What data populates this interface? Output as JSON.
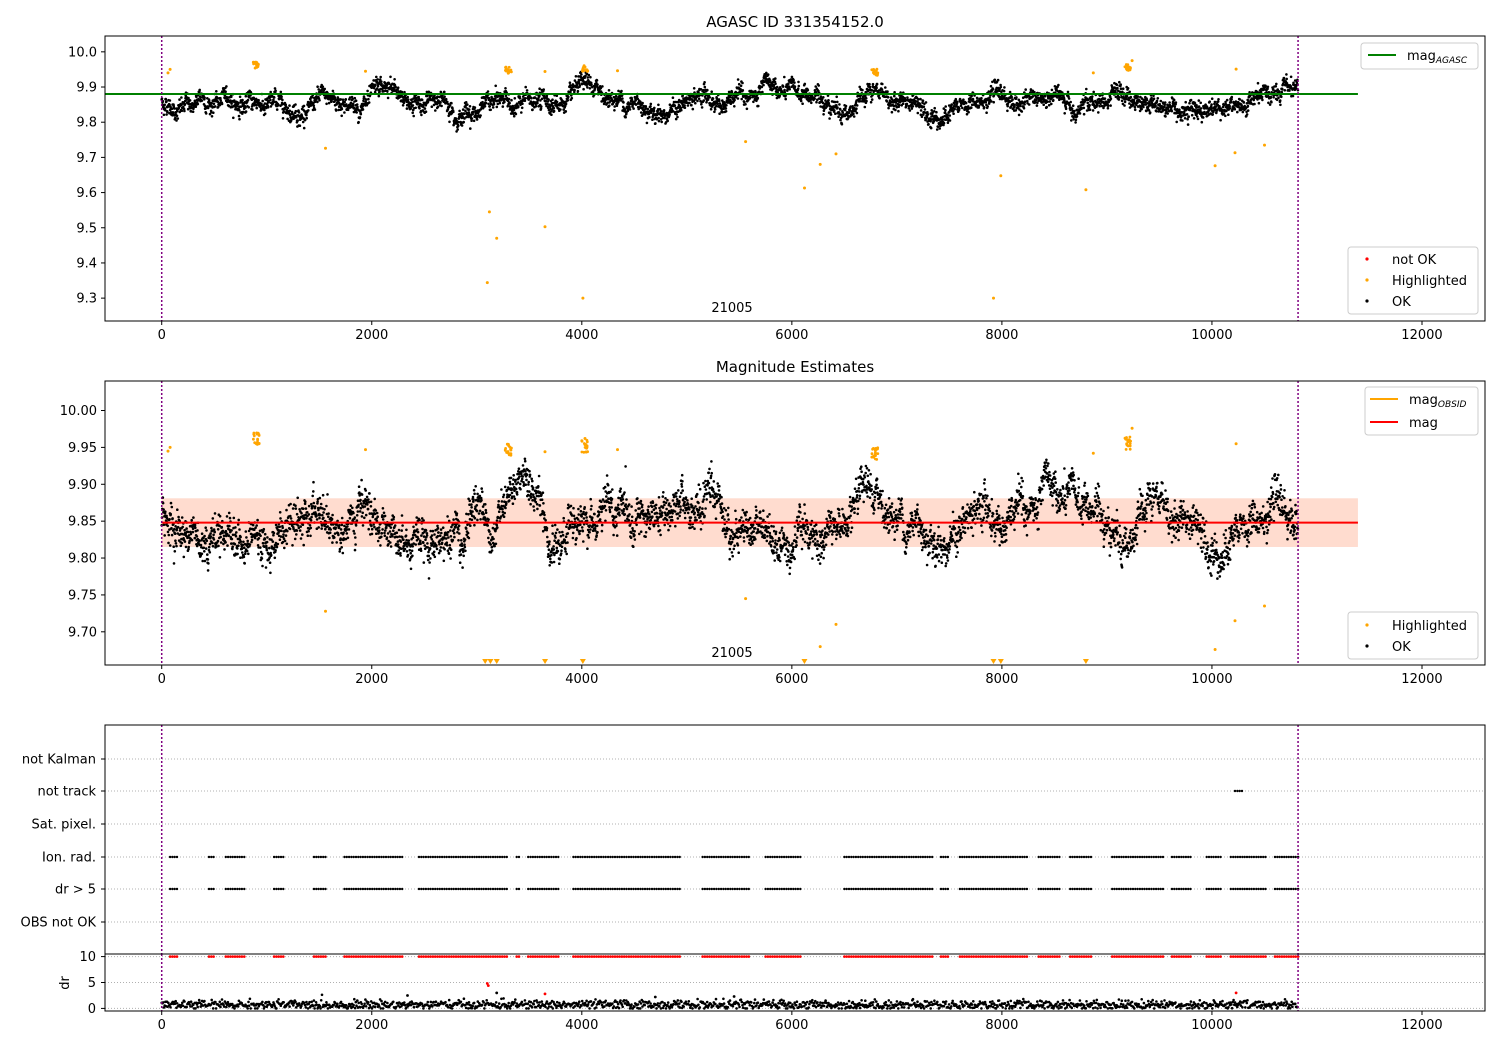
{
  "chart_data": [
    {
      "type": "scatter",
      "title": "AGASC ID 331354152.0",
      "xlim": [
        -540,
        12600
      ],
      "ylim": [
        9.235,
        10.045
      ],
      "xticks": [
        0,
        2000,
        4000,
        6000,
        8000,
        10000,
        12000
      ],
      "yticks": [
        9.3,
        9.4,
        9.5,
        9.6,
        9.7,
        9.8,
        9.9,
        10.0
      ],
      "ytick_labels": [
        "9.3",
        "9.4",
        "9.5",
        "9.6",
        "9.7",
        "9.8",
        "9.9",
        "10.0"
      ],
      "vlines": [
        0,
        10820
      ],
      "hline": {
        "y": 9.88,
        "x_range": [
          -540,
          11390
        ],
        "color": "#008000"
      },
      "annotation": "21005",
      "legend_lines": [
        {
          "name": "mag",
          "sub": "AGASC",
          "color": "#008000"
        }
      ],
      "legend_points": [
        {
          "name": "not OK",
          "color": "#ff0000"
        },
        {
          "name": "Highlighted",
          "color": "#ffa500"
        },
        {
          "name": "OK",
          "color": "#000000"
        }
      ],
      "baseline": 9.855,
      "spread": 0.03,
      "highlight_clusters": [
        {
          "x": 900,
          "y": 9.962
        },
        {
          "x": 3300,
          "y": 9.948
        },
        {
          "x": 4030,
          "y": 9.952
        },
        {
          "x": 9200,
          "y": 9.956
        },
        {
          "x": 6790,
          "y": 9.942
        }
      ],
      "outliers": [
        {
          "x": 60,
          "y": 9.94
        },
        {
          "x": 80,
          "y": 9.95
        },
        {
          "x": 1560,
          "y": 9.726
        },
        {
          "x": 1940,
          "y": 9.945
        },
        {
          "x": 3100,
          "y": 9.344
        },
        {
          "x": 3120,
          "y": 9.545
        },
        {
          "x": 3190,
          "y": 9.47
        },
        {
          "x": 3650,
          "y": 9.503
        },
        {
          "x": 3650,
          "y": 9.944
        },
        {
          "x": 4010,
          "y": 9.3
        },
        {
          "x": 4340,
          "y": 9.946
        },
        {
          "x": 5560,
          "y": 9.745
        },
        {
          "x": 6120,
          "y": 9.613
        },
        {
          "x": 6270,
          "y": 9.68
        },
        {
          "x": 6420,
          "y": 9.71
        },
        {
          "x": 7920,
          "y": 9.3
        },
        {
          "x": 7990,
          "y": 9.648
        },
        {
          "x": 8800,
          "y": 9.608
        },
        {
          "x": 8870,
          "y": 9.94
        },
        {
          "x": 10030,
          "y": 9.676
        },
        {
          "x": 10220,
          "y": 9.713
        },
        {
          "x": 10230,
          "y": 9.951
        },
        {
          "x": 10500,
          "y": 9.735
        },
        {
          "x": 9240,
          "y": 9.975
        }
      ]
    },
    {
      "type": "scatter",
      "title": "Magnitude Estimates",
      "xlim": [
        -540,
        12600
      ],
      "ylim": [
        9.655,
        10.04
      ],
      "xticks": [
        0,
        2000,
        4000,
        6000,
        8000,
        10000,
        12000
      ],
      "yticks": [
        9.7,
        9.75,
        9.8,
        9.85,
        9.9,
        9.95,
        10.0
      ],
      "ytick_labels": [
        "9.70",
        "9.75",
        "9.80",
        "9.85",
        "9.90",
        "9.95",
        "10.00"
      ],
      "vlines": [
        0,
        10820
      ],
      "hline": {
        "y": 9.848,
        "x_range": [
          0,
          11390
        ],
        "color": "#ff0000"
      },
      "band": {
        "y0": 9.815,
        "y1": 9.881,
        "x_range": [
          0,
          11390
        ],
        "color": "#ffdccf"
      },
      "annotation": "21005",
      "legend_lines": [
        {
          "name": "mag",
          "sub": "OBSID",
          "color": "#ffa500"
        },
        {
          "name": "mag",
          "sub": "",
          "color": "#ff0000"
        }
      ],
      "legend_points": [
        {
          "name": "Highlighted",
          "color": "#ffa500"
        },
        {
          "name": "OK",
          "color": "#000000"
        }
      ],
      "baseline": 9.848,
      "spread": 0.03,
      "highlight_clusters": [
        {
          "x": 900,
          "y": 9.962
        },
        {
          "x": 3300,
          "y": 9.948
        },
        {
          "x": 4030,
          "y": 9.952
        },
        {
          "x": 9200,
          "y": 9.956
        },
        {
          "x": 6790,
          "y": 9.942
        }
      ],
      "outliers": [
        {
          "x": 60,
          "y": 9.945
        },
        {
          "x": 80,
          "y": 9.95
        },
        {
          "x": 1560,
          "y": 9.728
        },
        {
          "x": 1940,
          "y": 9.947
        },
        {
          "x": 3300,
          "y": 9.954
        },
        {
          "x": 3650,
          "y": 9.944
        },
        {
          "x": 4030,
          "y": 9.962
        },
        {
          "x": 4340,
          "y": 9.947
        },
        {
          "x": 5560,
          "y": 9.745
        },
        {
          "x": 6270,
          "y": 9.68
        },
        {
          "x": 6420,
          "y": 9.71
        },
        {
          "x": 8870,
          "y": 9.942
        },
        {
          "x": 10030,
          "y": 9.676
        },
        {
          "x": 10220,
          "y": 9.715
        },
        {
          "x": 10230,
          "y": 9.955
        },
        {
          "x": 10500,
          "y": 9.735
        },
        {
          "x": 9240,
          "y": 9.976
        }
      ],
      "below_range_markers": [
        3080,
        3130,
        3190,
        3650,
        4010,
        6120,
        7920,
        7990,
        8800
      ]
    },
    {
      "type": "scatter",
      "title": "",
      "xlim": [
        -540,
        12600
      ],
      "xticks": [
        0,
        2000,
        4000,
        6000,
        8000,
        10000,
        12000
      ],
      "vlines": [
        0,
        10820
      ],
      "flag_rows": [
        "not Kalman",
        "not track",
        "Sat. pixel.",
        "Ion. rad.",
        "dr > 5",
        "OBS not OK"
      ],
      "flag_segments": {
        "not track": [
          [
            10220,
            10290
          ]
        ],
        "Ion. rad.": [
          [
            80,
            160
          ],
          [
            450,
            500
          ],
          [
            610,
            800
          ],
          [
            1070,
            1160
          ],
          [
            1450,
            1560
          ],
          [
            1740,
            2300
          ],
          [
            2450,
            3300
          ],
          [
            3380,
            3420
          ],
          [
            3490,
            3780
          ],
          [
            3920,
            4950
          ],
          [
            5150,
            5600
          ],
          [
            5750,
            6100
          ],
          [
            6500,
            7350
          ],
          [
            7420,
            7500
          ],
          [
            7600,
            8250
          ],
          [
            8350,
            8550
          ],
          [
            8650,
            8850
          ],
          [
            9050,
            9550
          ],
          [
            9620,
            9800
          ],
          [
            9950,
            10100
          ],
          [
            10180,
            10520
          ],
          [
            10600,
            10830
          ]
        ],
        "dr > 5": [
          [
            80,
            160
          ],
          [
            450,
            500
          ],
          [
            610,
            800
          ],
          [
            1070,
            1160
          ],
          [
            1450,
            1560
          ],
          [
            1740,
            2300
          ],
          [
            2450,
            3300
          ],
          [
            3380,
            3420
          ],
          [
            3490,
            3780
          ],
          [
            3920,
            4950
          ],
          [
            5150,
            5600
          ],
          [
            5750,
            6100
          ],
          [
            6500,
            7350
          ],
          [
            7420,
            7500
          ],
          [
            7600,
            8250
          ],
          [
            8350,
            8550
          ],
          [
            8650,
            8850
          ],
          [
            9050,
            9550
          ],
          [
            9620,
            9800
          ],
          [
            9950,
            10100
          ],
          [
            10180,
            10520
          ],
          [
            10600,
            10830
          ]
        ]
      },
      "dr_ylabel": "dr",
      "dr_ylim": [
        -0.5,
        10.5
      ],
      "dr_yticks": [
        0,
        5,
        10
      ],
      "dr_ytick_labels": [
        "0",
        "5",
        "10"
      ],
      "dr_baseline": 0.7,
      "dr_capped": 10,
      "dr_outliers": [
        {
          "x": 3100,
          "y": 4.8
        },
        {
          "x": 3110,
          "y": 4.4
        },
        {
          "x": 3190,
          "y": 3.0
        },
        {
          "x": 3650,
          "y": 2.8
        },
        {
          "x": 10230,
          "y": 3.0
        },
        {
          "x": 2340,
          "y": 2.5
        },
        {
          "x": 4700,
          "y": 2.2
        },
        {
          "x": 5450,
          "y": 2.3
        }
      ]
    }
  ],
  "colors": {
    "ok": "#000000",
    "highlighted": "#ffa500",
    "not_ok": "#ff0000",
    "vline": "#800080",
    "grid": "#b0b0b0"
  }
}
